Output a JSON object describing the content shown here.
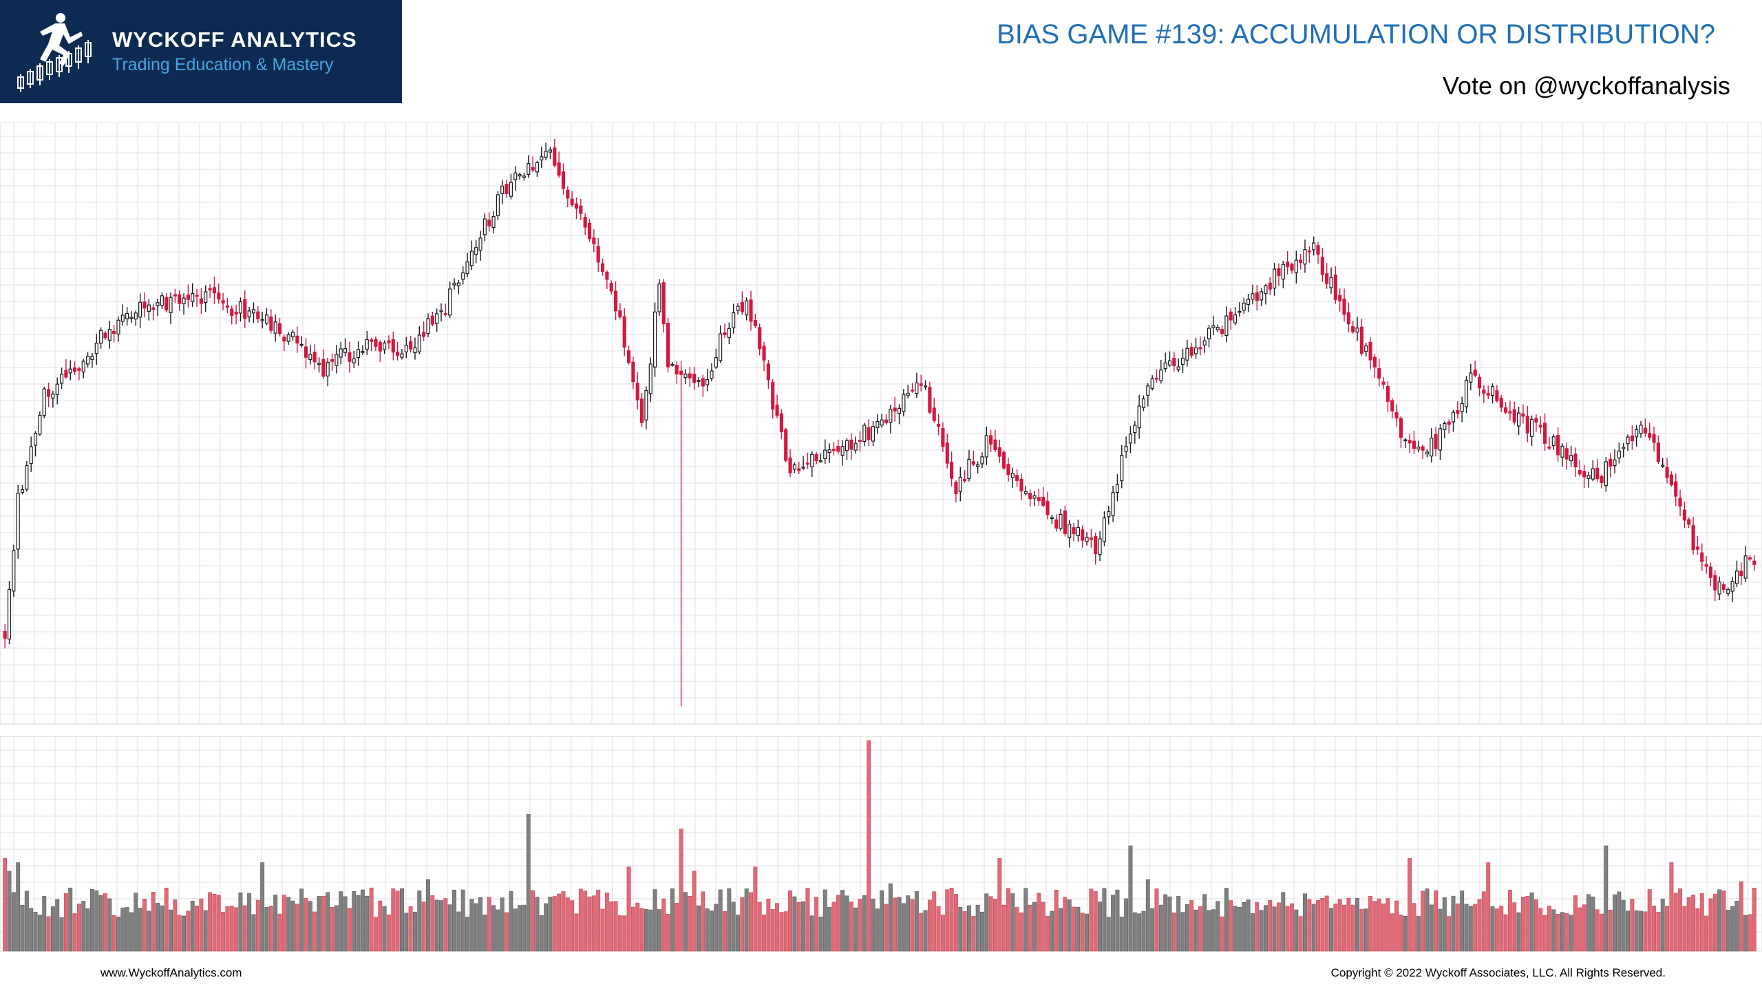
{
  "branding": {
    "name": "WYCKOFF ANALYTICS",
    "tagline": "Trading Education & Mastery"
  },
  "header": {
    "title": "BIAS GAME #139: ACCUMULATION OR DISTRIBUTION?",
    "subtitle": "Vote on @wyckoffanalysis"
  },
  "footer": {
    "website": "www.WyckoffAnalytics.com",
    "copyright": "Copyright © 2022 Wyckoff Associates, LLC. All Rights Reserved."
  },
  "colors": {
    "brand_navy": "#0d2b52",
    "title_blue": "#1f6fb8",
    "tagline_blue": "#4aa3e0",
    "up_bar": "#1a1a1a",
    "down_bar": "#d4173f",
    "up_volume": "#808080",
    "down_volume": "#e06a78",
    "grid": "#e2e2e2"
  },
  "chart_data": {
    "type": "candlestick",
    "title": "",
    "xlabel": "",
    "ylabel": "",
    "grid": true,
    "legend": "none",
    "ylim": [
      0,
      100
    ],
    "volume_ylim": [
      0,
      100
    ],
    "x": [
      0,
      3,
      9,
      16,
      22,
      32,
      45,
      60,
      73,
      83,
      91,
      100,
      105,
      110,
      116,
      125,
      130,
      140,
      146,
      150,
      152,
      160,
      165,
      170,
      180,
      190,
      200,
      210,
      218,
      225,
      237,
      250,
      262,
      278,
      285,
      292,
      300,
      304,
      314,
      323,
      330,
      336,
      350,
      365,
      375,
      385,
      392,
      401
    ],
    "anchors": [
      16,
      38,
      55,
      60,
      65,
      70,
      72,
      68,
      60,
      64,
      62,
      69,
      76,
      84,
      92,
      96,
      88,
      71,
      50,
      74,
      60,
      57,
      66,
      72,
      42,
      46,
      50,
      58,
      40,
      47,
      36,
      30,
      58,
      66,
      70,
      76,
      80,
      74,
      59,
      45,
      49,
      58,
      50,
      41,
      51,
      34,
      22,
      28
    ],
    "events": [
      {
        "label": "spike-low",
        "x": 155,
        "y": 3
      },
      {
        "label": "volume-climax",
        "x": 198,
        "volume": 100
      }
    ],
    "volume_base": 16,
    "volume_spikes": [
      {
        "x": 0,
        "v": 44
      },
      {
        "x": 1,
        "v": 38
      },
      {
        "x": 3,
        "v": 42
      },
      {
        "x": 15,
        "v": 30
      },
      {
        "x": 34,
        "v": 28
      },
      {
        "x": 59,
        "v": 42
      },
      {
        "x": 72,
        "v": 26
      },
      {
        "x": 84,
        "v": 30
      },
      {
        "x": 97,
        "v": 34
      },
      {
        "x": 120,
        "v": 65
      },
      {
        "x": 143,
        "v": 40
      },
      {
        "x": 155,
        "v": 58
      },
      {
        "x": 158,
        "v": 38
      },
      {
        "x": 172,
        "v": 40
      },
      {
        "x": 198,
        "v": 100
      },
      {
        "x": 203,
        "v": 32
      },
      {
        "x": 228,
        "v": 44
      },
      {
        "x": 258,
        "v": 50
      },
      {
        "x": 262,
        "v": 34
      },
      {
        "x": 322,
        "v": 44
      },
      {
        "x": 340,
        "v": 42
      },
      {
        "x": 367,
        "v": 50
      },
      {
        "x": 382,
        "v": 42
      },
      {
        "x": 398,
        "v": 33
      }
    ]
  }
}
